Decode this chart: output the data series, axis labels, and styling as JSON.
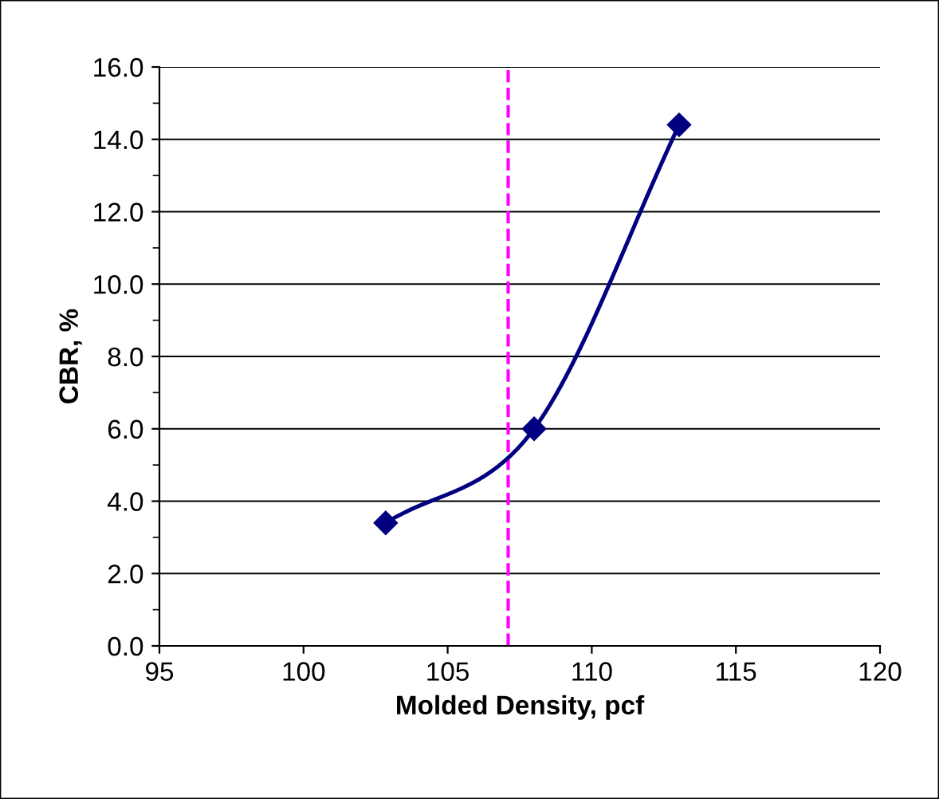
{
  "chart_data": {
    "type": "line",
    "xlabel": "Molded Density, pcf",
    "ylabel": "CBR, %",
    "x": [
      102.85,
      108.0,
      113.03
    ],
    "series": [
      {
        "color": "#000080",
        "values": [
          3.4,
          6.0,
          14.4
        ]
      }
    ],
    "xlim": [
      95,
      120
    ],
    "xticks": [
      95,
      100,
      105,
      110,
      115,
      120
    ],
    "ylim": [
      0,
      16
    ],
    "yticks": [
      {
        "value": 0,
        "label": "0.0"
      },
      {
        "value": 2,
        "label": "2.0"
      },
      {
        "value": 4,
        "label": "4.0"
      },
      {
        "value": 6,
        "label": "6.0"
      },
      {
        "value": 8,
        "label": "8.0"
      },
      {
        "value": 10,
        "label": "10.0"
      },
      {
        "value": 12,
        "label": "12.0"
      },
      {
        "value": 14,
        "label": "14.0"
      },
      {
        "value": 16,
        "label": "16.0"
      }
    ],
    "ref_lines": [
      {
        "axis": "x",
        "value": 107.1,
        "color": "#ff00ff",
        "line_style": "dashed"
      }
    ],
    "grid": "y",
    "marker": "diamond"
  }
}
